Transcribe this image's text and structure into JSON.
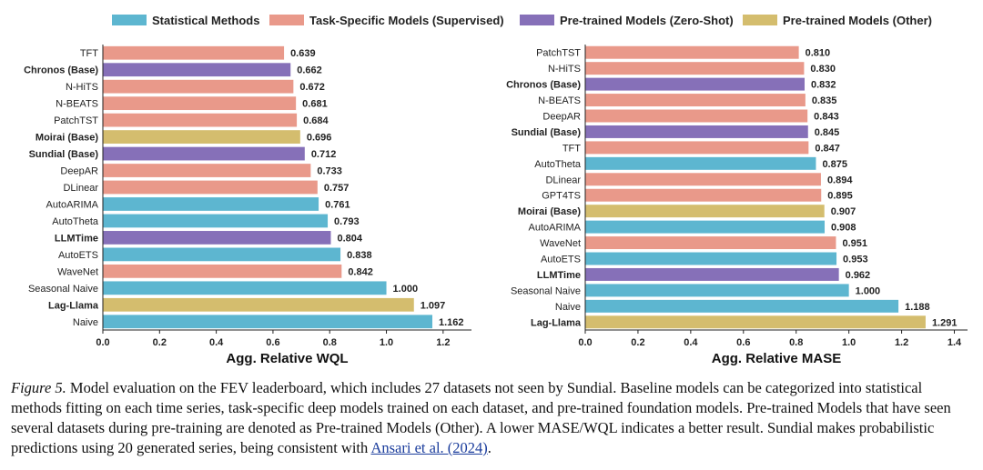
{
  "legend": [
    {
      "label": "Statistical Methods",
      "color": "#5db6d0"
    },
    {
      "label": "Task-Specific Models (Supervised)",
      "color": "#e9998a"
    },
    {
      "label": "Pre-trained Models (Zero-Shot)",
      "color": "#8670b8"
    },
    {
      "label": "Pre-trained Models (Other)",
      "color": "#d4bd6e"
    }
  ],
  "chart_data": [
    {
      "type": "bar",
      "orientation": "horizontal",
      "xlabel": "Agg. Relative WQL",
      "xlim": [
        0.0,
        1.3
      ],
      "xticks": [
        "0.0",
        "0.2",
        "0.4",
        "0.6",
        "0.8",
        "1.0",
        "1.2"
      ],
      "categories": [
        "TFT",
        "Chronos (Base)",
        "N-HiTS",
        "N-BEATS",
        "PatchTST",
        "Moirai (Base)",
        "Sundial (Base)",
        "DeepAR",
        "DLinear",
        "AutoARIMA",
        "AutoTheta",
        "LLMTime",
        "AutoETS",
        "WaveNet",
        "Seasonal Naive",
        "Lag-Llama",
        "Naive"
      ],
      "values": [
        0.639,
        0.662,
        0.672,
        0.681,
        0.684,
        0.696,
        0.712,
        0.733,
        0.757,
        0.761,
        0.793,
        0.804,
        0.838,
        0.842,
        1.0,
        1.097,
        1.162
      ],
      "value_labels": [
        "0.639",
        "0.662",
        "0.672",
        "0.681",
        "0.684",
        "0.696",
        "0.712",
        "0.733",
        "0.757",
        "0.761",
        "0.793",
        "0.804",
        "0.838",
        "0.842",
        "1.000",
        "1.097",
        "1.162"
      ],
      "groups": [
        "supervised",
        "zeroshot",
        "supervised",
        "supervised",
        "supervised",
        "other",
        "zeroshot",
        "supervised",
        "supervised",
        "statistical",
        "statistical",
        "zeroshot",
        "statistical",
        "supervised",
        "statistical",
        "other",
        "statistical"
      ],
      "bold": [
        false,
        true,
        false,
        false,
        false,
        true,
        true,
        false,
        false,
        false,
        false,
        true,
        false,
        false,
        false,
        true,
        false
      ]
    },
    {
      "type": "bar",
      "orientation": "horizontal",
      "xlabel": "Agg. Relative MASE",
      "xlim": [
        0.0,
        1.45
      ],
      "xticks": [
        "0.0",
        "0.2",
        "0.4",
        "0.6",
        "0.8",
        "1.0",
        "1.2",
        "1.4"
      ],
      "categories": [
        "PatchTST",
        "N-HiTS",
        "Chronos (Base)",
        "N-BEATS",
        "DeepAR",
        "Sundial (Base)",
        "TFT",
        "AutoTheta",
        "DLinear",
        "GPT4TS",
        "Moirai (Base)",
        "AutoARIMA",
        "WaveNet",
        "AutoETS",
        "LLMTime",
        "Seasonal Naive",
        "Naive",
        "Lag-Llama"
      ],
      "values": [
        0.81,
        0.83,
        0.832,
        0.835,
        0.843,
        0.845,
        0.847,
        0.875,
        0.894,
        0.895,
        0.907,
        0.908,
        0.951,
        0.953,
        0.962,
        1.0,
        1.188,
        1.291
      ],
      "value_labels": [
        "0.810",
        "0.830",
        "0.832",
        "0.835",
        "0.843",
        "0.845",
        "0.847",
        "0.875",
        "0.894",
        "0.895",
        "0.907",
        "0.908",
        "0.951",
        "0.953",
        "0.962",
        "1.000",
        "1.188",
        "1.291"
      ],
      "groups": [
        "supervised",
        "supervised",
        "zeroshot",
        "supervised",
        "supervised",
        "zeroshot",
        "supervised",
        "statistical",
        "supervised",
        "supervised",
        "other",
        "statistical",
        "supervised",
        "statistical",
        "zeroshot",
        "statistical",
        "statistical",
        "other"
      ],
      "bold": [
        false,
        false,
        true,
        false,
        false,
        true,
        false,
        false,
        false,
        false,
        true,
        false,
        false,
        false,
        true,
        false,
        false,
        true
      ]
    }
  ],
  "group_colors": {
    "statistical": "#5db6d0",
    "supervised": "#e9998a",
    "zeroshot": "#8670b8",
    "other": "#d4bd6e"
  },
  "caption": {
    "fig_label": "Figure 5.",
    "text": " Model evaluation on the FEV leaderboard, which includes 27 datasets not seen by Sundial. Baseline models can be categorized into statistical methods fitting on each time series, task-specific deep models trained on each dataset, and pre-trained foundation models. Pre-trained Models that have seen several datasets during pre-training are denoted as Pre-trained Models (Other). A lower MASE/WQL indicates a better result. Sundial makes probabilistic predictions using 20 generated series, being consistent with ",
    "citation": "Ansari et al. (2024)",
    "end": "."
  }
}
